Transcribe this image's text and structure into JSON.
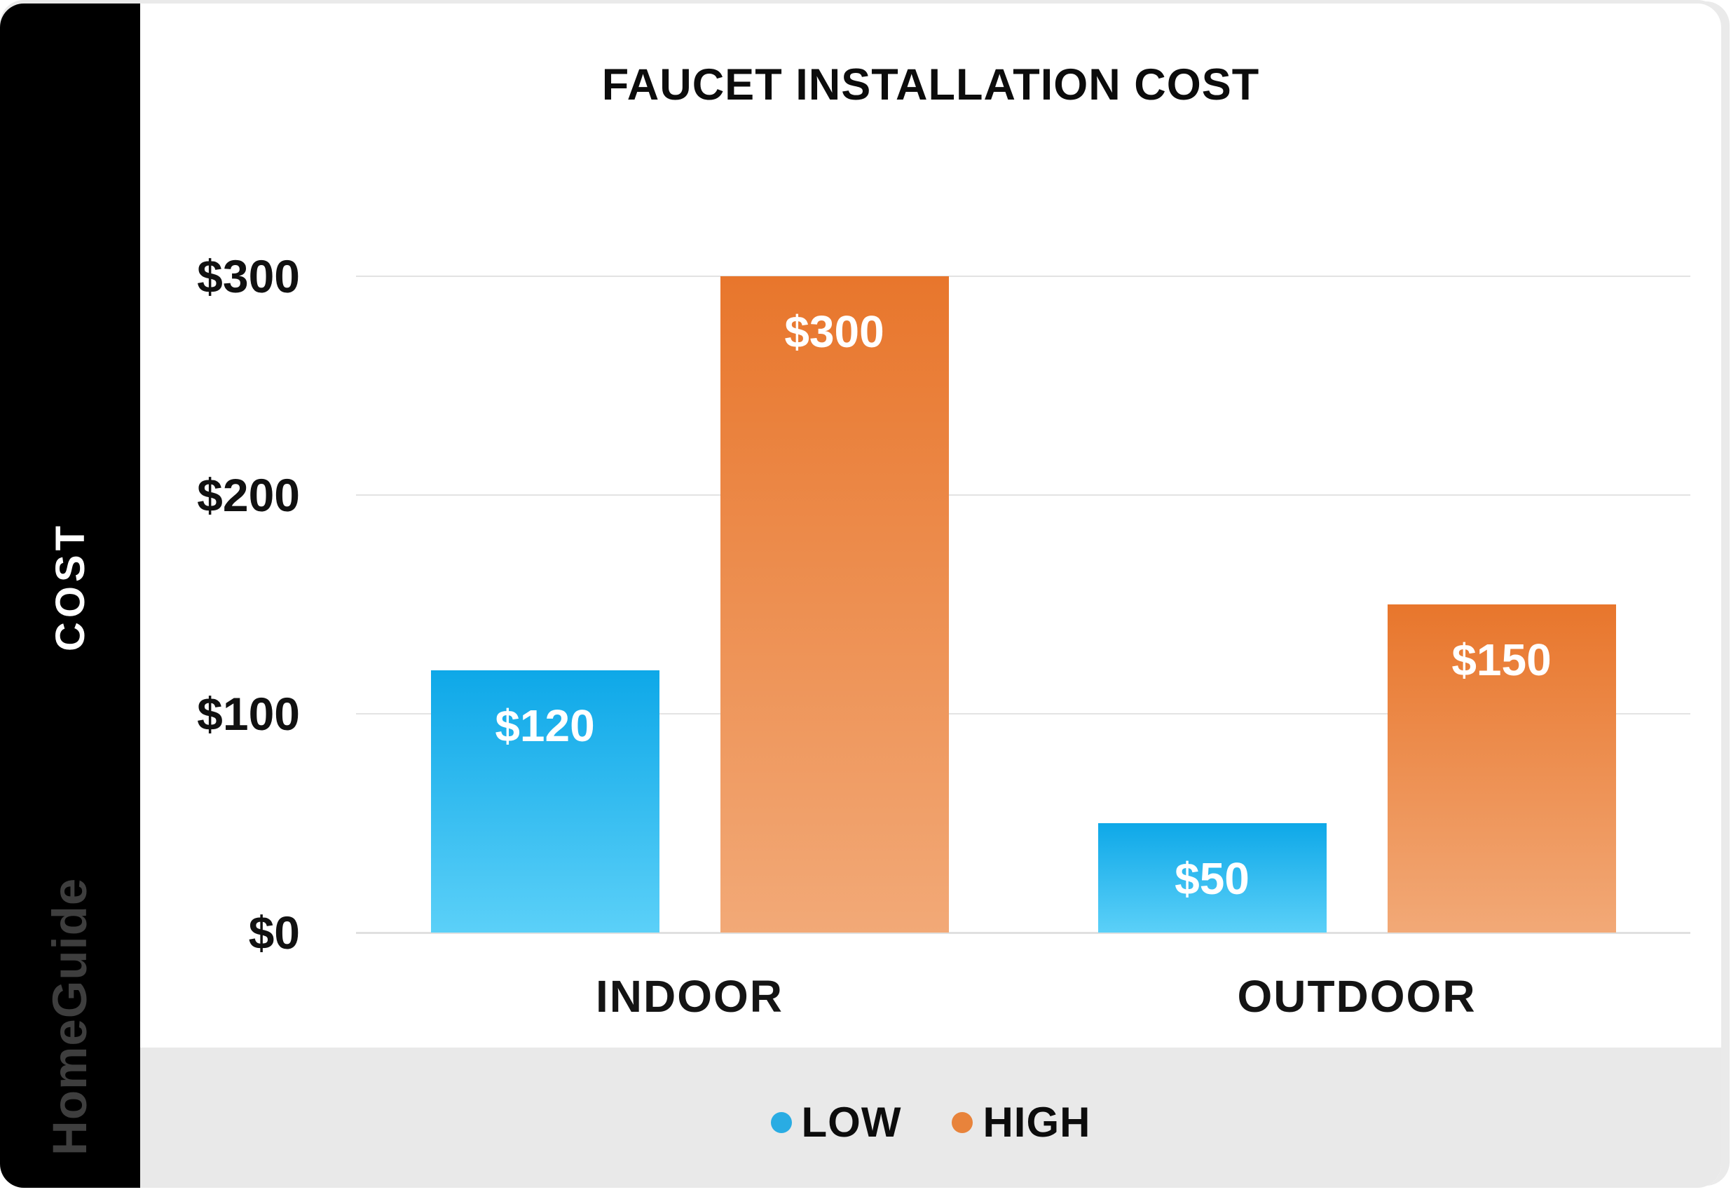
{
  "title": "FAUCET INSTALLATION COST",
  "y_axis_title": "COST",
  "watermark": "HomeGuide",
  "colors": {
    "sidebar_bg": "#000000",
    "card_bg": "#ffffff",
    "footer_bg": "#e9e9e9",
    "gridline": "#e3e3e3",
    "axis_line": "#e0e0e0",
    "low_gradient_top": "#0ea8e8",
    "low_gradient_bottom": "#5bd0f8",
    "high_gradient_top": "#e8762c",
    "high_gradient_bottom": "#f2a977",
    "legend_low_dot": "#29ace3",
    "legend_high_dot": "#e8833b",
    "watermark_text": "#3e3e3e"
  },
  "legend": [
    {
      "label": "LOW"
    },
    {
      "label": "HIGH"
    }
  ],
  "chart_data": {
    "type": "bar",
    "title": "FAUCET INSTALLATION COST",
    "categories": [
      "INDOOR",
      "OUTDOOR"
    ],
    "series": [
      {
        "name": "LOW",
        "values": [
          120,
          50
        ],
        "value_labels": [
          "$120",
          "$50"
        ]
      },
      {
        "name": "HIGH",
        "values": [
          300,
          150
        ],
        "value_labels": [
          "$300",
          "$150"
        ]
      }
    ],
    "ylabel": "COST",
    "xlabel": "",
    "ylim": [
      0,
      300
    ],
    "yticks": [
      {
        "value": 0,
        "label": "$0"
      },
      {
        "value": 100,
        "label": "$100"
      },
      {
        "value": 200,
        "label": "$200"
      },
      {
        "value": 300,
        "label": "$300"
      }
    ],
    "grid": true,
    "legend_position": "bottom"
  }
}
